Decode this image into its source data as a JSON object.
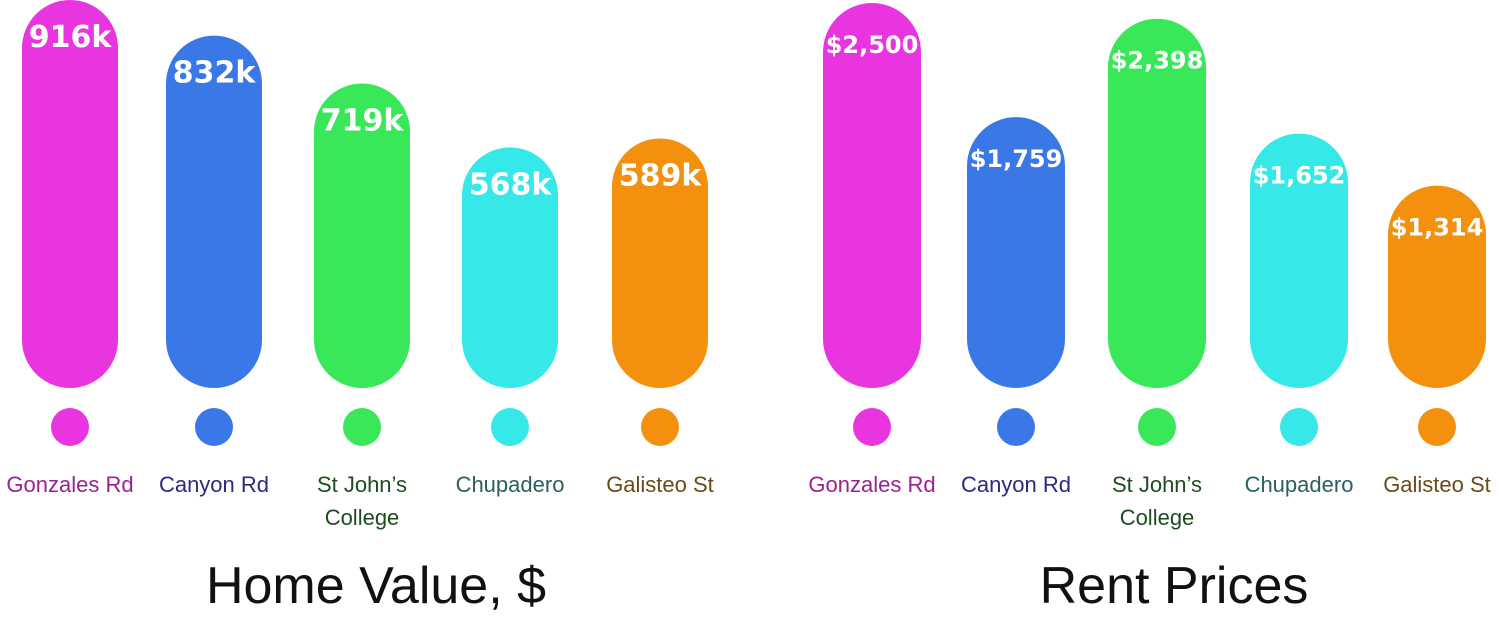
{
  "chart_data": [
    {
      "type": "bar",
      "title": "Home Value, $",
      "categories": [
        "Gonzales Rd",
        "Canyon Rd",
        "St John's College",
        "Chupadero",
        "Galisteo St"
      ],
      "category_lines": [
        [
          "Gonzales Rd"
        ],
        [
          "Canyon Rd"
        ],
        [
          "St John’s",
          "College"
        ],
        [
          "Chupadero"
        ],
        [
          "Galisteo St"
        ]
      ],
      "values": [
        916,
        832,
        719,
        568,
        589
      ],
      "value_labels": [
        "916k",
        "832k",
        "719k",
        "568k",
        "589k"
      ],
      "ylim": [
        0,
        916
      ],
      "bar_colors": [
        "#e935e0",
        "#3b78e7",
        "#38e858",
        "#36e8e8",
        "#f3900e"
      ],
      "label_colors": [
        "#9b2290",
        "#2a2a80",
        "#1d4d1d",
        "#2a6060",
        "#6b4a16"
      ],
      "grid": false,
      "legend": "none"
    },
    {
      "type": "bar",
      "title": "Rent Prices",
      "categories": [
        "Gonzales Rd",
        "Canyon Rd",
        "St John's College",
        "Chupadero",
        "Galisteo St"
      ],
      "category_lines": [
        [
          "Gonzales Rd"
        ],
        [
          "Canyon Rd"
        ],
        [
          "St John’s",
          "College"
        ],
        [
          "Chupadero"
        ],
        [
          "Galisteo St"
        ]
      ],
      "values": [
        2500,
        1759,
        2398,
        1652,
        1314
      ],
      "value_labels": [
        "$2,500",
        "$1,759",
        "$2,398",
        "$1,652",
        "$1,314"
      ],
      "ylim": [
        0,
        2500
      ],
      "bar_colors": [
        "#e935e0",
        "#3b78e7",
        "#38e858",
        "#36e8e8",
        "#f3900e"
      ],
      "label_colors": [
        "#9b2290",
        "#2a2a80",
        "#1d4d1d",
        "#2a6060",
        "#6b4a16"
      ],
      "grid": false,
      "legend": "none"
    }
  ]
}
